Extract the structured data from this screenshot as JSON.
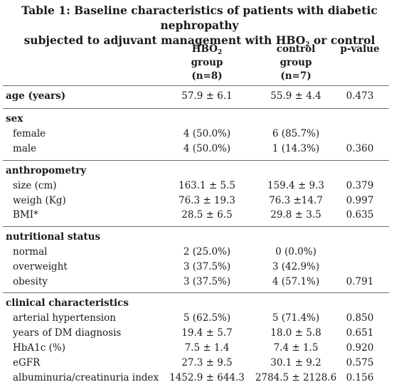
{
  "title": {
    "line1": "Table 1: Baseline characteristics of patients with diabetic nephropathy",
    "line2_main": "subjected to adjuvant management with HBO",
    "line2_sub": "2",
    "line2_tail": " or control"
  },
  "headers": {
    "hbo": {
      "l1_main": "HBO",
      "l1_sub": "2",
      "l2": "group",
      "l3": "(n=8)"
    },
    "control": {
      "l1": "control",
      "l2": "group",
      "l3": "(n=7)"
    },
    "pvalue": {
      "l1": "p-value"
    }
  },
  "rows": [
    {
      "label": "age (years)",
      "hbo": "57.9 ± 6.1",
      "control": "55.9 ± 4.4",
      "p": "0.473"
    },
    {
      "label": "sex",
      "hbo": "",
      "control": "",
      "p": ""
    },
    {
      "label": "female",
      "hbo": "4 (50.0%)",
      "control": "6 (85.7%)",
      "p": ""
    },
    {
      "label": "male",
      "hbo": "4 (50.0%)",
      "control": "1 (14.3%)",
      "p": "0.360"
    },
    {
      "label": "anthropometry",
      "hbo": "",
      "control": "",
      "p": ""
    },
    {
      "label": "size (cm)",
      "hbo": "163.1 ± 5.5",
      "control": "159.4 ± 9.3",
      "p": "0.379"
    },
    {
      "label": "weigh (Kg)",
      "hbo": "76.3 ± 19.3",
      "control": "76.3 ±14.7",
      "p": "0.997"
    },
    {
      "label": "BMI*",
      "hbo": "28.5 ± 6.5",
      "control": "29.8 ± 3.5",
      "p": "0.635"
    },
    {
      "label": "nutritional status",
      "hbo": "",
      "control": "",
      "p": ""
    },
    {
      "label": "normal",
      "hbo": "2 (25.0%)",
      "control": "0 (0.0%)",
      "p": ""
    },
    {
      "label": "overweight",
      "hbo": "3 (37.5%)",
      "control": "3 (42.9%)",
      "p": ""
    },
    {
      "label": "obesity",
      "hbo": "3 (37.5%)",
      "control": "4 (57.1%)",
      "p": "0.791"
    },
    {
      "label": "clinical characteristics",
      "hbo": "",
      "control": "",
      "p": ""
    },
    {
      "label": "arterial hypertension",
      "hbo": "5 (62.5%)",
      "control": "5 (71.4%)",
      "p": "0.850"
    },
    {
      "label": "years of DM diagnosis",
      "hbo": "19.4 ± 5.7",
      "control": "18.0 ± 5.8",
      "p": "0.651"
    },
    {
      "label": "HbA1c (%)",
      "hbo": "7.5 ± 1.4",
      "control": "7.4 ± 1.5",
      "p": "0.920"
    },
    {
      "label": "eGFR",
      "hbo": "27.3 ± 9.5",
      "control": "30.1 ± 9.2",
      "p": "0.575"
    },
    {
      "label": "albuminuria/creatinuria index",
      "hbo": "1452.9 ± 644.3",
      "control": "2784.5 ± 2128.6",
      "p": "0.156"
    }
  ]
}
